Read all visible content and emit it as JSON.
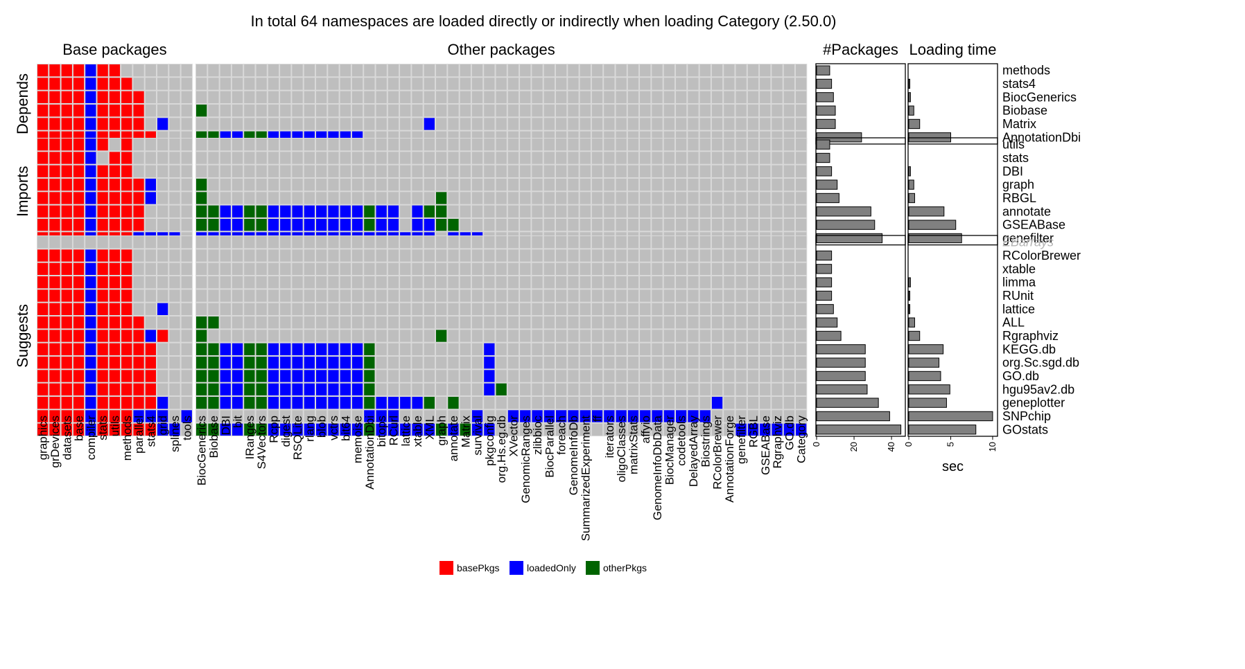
{
  "chart_data": {
    "type": "heatmap",
    "title": "In total 64 namespaces are loaded directly or indirectly when loading Category (2.50.0)",
    "column_groups": [
      {
        "title": "Base packages",
        "columns": [
          "graphics",
          "grDevices",
          "datasets",
          "base",
          "compiler",
          "stats",
          "utils",
          "methods",
          "parallel",
          "stats4",
          "grid",
          "splines",
          "tools"
        ]
      },
      {
        "title": "Other packages",
        "columns": [
          "BiocGenerics",
          "Biobase",
          "DBI",
          "bit",
          "IRanges",
          "S4Vectors",
          "Rcpp",
          "digest",
          "RSQLite",
          "rlang",
          "blob",
          "vctrs",
          "bit64",
          "memoise",
          "AnnotationDbi",
          "bitops",
          "RCurl",
          "lattice",
          "xtable",
          "XML",
          "graph",
          "annotate",
          "Matrix",
          "survival",
          "pkgconfig",
          "org.Hs.eg.db",
          "XVector",
          "GenomicRanges",
          "zlibbioc",
          "BiocParallel",
          "foreach",
          "GenomeInfoDb",
          "SummarizedExperiment",
          "ff",
          "iterators",
          "oligoClasses",
          "matrixStats",
          "affyio",
          "GenomeInfoDbData",
          "BiocManager",
          "codetools",
          "DelayedArray",
          "Biostrings",
          "RColorBrewer",
          "AnnotationForge",
          "genefilter",
          "RGBL",
          "GSEABase",
          "Rgraphviz",
          "GO.db",
          "Category"
        ]
      }
    ],
    "row_groups": [
      {
        "title": "Depends",
        "rows": [
          {
            "name": "methods",
            "packages": 7,
            "loading_time": 0.0,
            "cells": {
              "base": "bbbbLbbXXXXXX",
              "other": ""
            }
          },
          {
            "name": "stats4",
            "packages": 8,
            "loading_time": 0.1,
            "cells": {
              "base": "bbbbLbbbXXXXX",
              "other": ""
            }
          },
          {
            "name": "BiocGenerics",
            "packages": 9,
            "loading_time": 0.2,
            "cells": {
              "base": "bbbbLbbbbXXXX",
              "other": ""
            }
          },
          {
            "name": "Biobase",
            "packages": 10,
            "loading_time": 0.6,
            "cells": {
              "base": "bbbbLbbbbXXXX",
              "other": "o"
            }
          },
          {
            "name": "Matrix",
            "packages": 10,
            "loading_time": 1.3,
            "cells": {
              "base": "bbbbLbbbbXLXX",
              "other": "...................L"
            }
          },
          {
            "name": "AnnotationDbi",
            "packages": 24,
            "loading_time": 5.0,
            "cells": {
              "base": "bbbbLbbbbbXXX",
              "other": "ooLLooLLLLLLLL"
            }
          }
        ]
      },
      {
        "title": "Imports",
        "rows": [
          {
            "name": "utils",
            "packages": 7,
            "loading_time": 0.0,
            "cells": {
              "base": "bbbbLb.bXXXXX",
              "other": ""
            }
          },
          {
            "name": "stats",
            "packages": 7,
            "loading_time": 0.0,
            "cells": {
              "base": "bbbbL.bbXXXXX",
              "other": ""
            }
          },
          {
            "name": "DBI",
            "packages": 8,
            "loading_time": 0.2,
            "cells": {
              "base": "bbbbLbbbXXXXX",
              "other": ""
            }
          },
          {
            "name": "graph",
            "packages": 11,
            "loading_time": 0.6,
            "cells": {
              "base": "bbbbLbbbbLXXX",
              "other": "o"
            }
          },
          {
            "name": "RBGL",
            "packages": 12,
            "loading_time": 0.7,
            "cells": {
              "base": "bbbbLbbbbLXXX",
              "other": "o...................o"
            }
          },
          {
            "name": "annotate",
            "packages": 29,
            "loading_time": 4.2,
            "cells": {
              "base": "bbbbLbbbbXXXX",
              "other": "ooLLooLLLLLLLLoLL.Loo"
            }
          },
          {
            "name": "GSEABase",
            "packages": 31,
            "loading_time": 5.6,
            "cells": {
              "base": "bbbbLbbbbXXXX",
              "other": "ooLLooLLLLLLLLoLL.LLoo"
            }
          },
          {
            "name": "genefilter",
            "packages": 35,
            "loading_time": 6.3,
            "cells": {
              "base": "bbbbLbbbLLLLX",
              "other": "LLLLLLLLLLLLLLLLLLLL.LLL"
            }
          }
        ]
      },
      {
        "title": "Suggests",
        "rows": [
          {
            "name": "EBarrays",
            "packages": null,
            "loading_time": null,
            "faded": true,
            "cells": {
              "base": "",
              "other": ""
            }
          },
          {
            "name": "RColorBrewer",
            "packages": 8,
            "loading_time": 0.0,
            "cells": {
              "base": "bbbbLbbbXXXXX",
              "other": ""
            }
          },
          {
            "name": "xtable",
            "packages": 8,
            "loading_time": 0.0,
            "cells": {
              "base": "bbbbLbbbXXXXX",
              "other": ""
            }
          },
          {
            "name": "limma",
            "packages": 8,
            "loading_time": 0.2,
            "cells": {
              "base": "bbbbLbbbXXXXX",
              "other": ""
            }
          },
          {
            "name": "RUnit",
            "packages": 8,
            "loading_time": 0.1,
            "cells": {
              "base": "bbbbLbbbXXXXX",
              "other": ""
            }
          },
          {
            "name": "lattice",
            "packages": 9,
            "loading_time": 0.1,
            "cells": {
              "base": "bbbbLbbbXXLXX",
              "other": ""
            }
          },
          {
            "name": "ALL",
            "packages": 11,
            "loading_time": 0.7,
            "cells": {
              "base": "bbbbLbbbbXXXX",
              "other": "oo"
            }
          },
          {
            "name": "Rgraphviz",
            "packages": 13,
            "loading_time": 1.3,
            "cells": {
              "base": "bbbbLbbbbLbXX",
              "other": "o...................o"
            }
          },
          {
            "name": "KEGG.db",
            "packages": 26,
            "loading_time": 4.1,
            "cells": {
              "base": "bbbbLbbbbbXXX",
              "other": "ooLLooLLLLLLLLo.........L"
            }
          },
          {
            "name": "org.Sc.sgd.db",
            "packages": 26,
            "loading_time": 3.6,
            "cells": {
              "base": "bbbbLbbbbbXXX",
              "other": "ooLLooLLLLLLLLo.........L"
            }
          },
          {
            "name": "GO.db",
            "packages": 26,
            "loading_time": 3.8,
            "cells": {
              "base": "bbbbLbbbbbXXX",
              "other": "ooLLooLLLLLLLLo.........L"
            }
          },
          {
            "name": "hgu95av2.db",
            "packages": 27,
            "loading_time": 4.9,
            "cells": {
              "base": "bbbbLbbbbbXXX",
              "other": "ooLLooLLLLLLLLo.........Lo"
            }
          },
          {
            "name": "geneplotter",
            "packages": 33,
            "loading_time": 4.5,
            "cells": {
              "base": "bbbbLbbbbbLXX",
              "other": "ooLLooLLLLLLLLoLLLLo.o.....................L"
            }
          },
          {
            "name": "SNPchip",
            "packages": 39,
            "loading_time": 10.0,
            "cells": {
              "base": "bbbbLbbbLLLXL",
              "other": "..............LLL......L..LLLLLLLLLLLLLLLLL"
            }
          },
          {
            "name": "GOstats",
            "packages": 45,
            "loading_time": 8.0,
            "cells": {
              "base": "bbbbLbbbbbLLX",
              "other": "ooLLooLLLLLLLLoLLLLLoLoLL....................LLLLLLo"
            }
          }
        ]
      }
    ],
    "legend": [
      {
        "key": "b",
        "label": "basePkgs",
        "color": "#ff0000"
      },
      {
        "key": "L",
        "label": "loadedOnly",
        "color": "#0000ff"
      },
      {
        "key": "o",
        "label": "otherPkgs",
        "color": "#006400"
      }
    ],
    "empty_color": "#bebebe",
    "bar_panels": [
      {
        "title": "#Packages",
        "field": "packages",
        "xlim": [
          0,
          47
        ],
        "ticks": [
          0,
          20,
          40
        ],
        "xlabel": ""
      },
      {
        "title": "Loading time",
        "field": "loading_time",
        "xlim": [
          0,
          10.5
        ],
        "ticks": [
          0,
          5,
          10
        ],
        "xlabel": "sec"
      }
    ],
    "bar_color": "#808080",
    "grid": true,
    "legend_position": "bottom"
  }
}
